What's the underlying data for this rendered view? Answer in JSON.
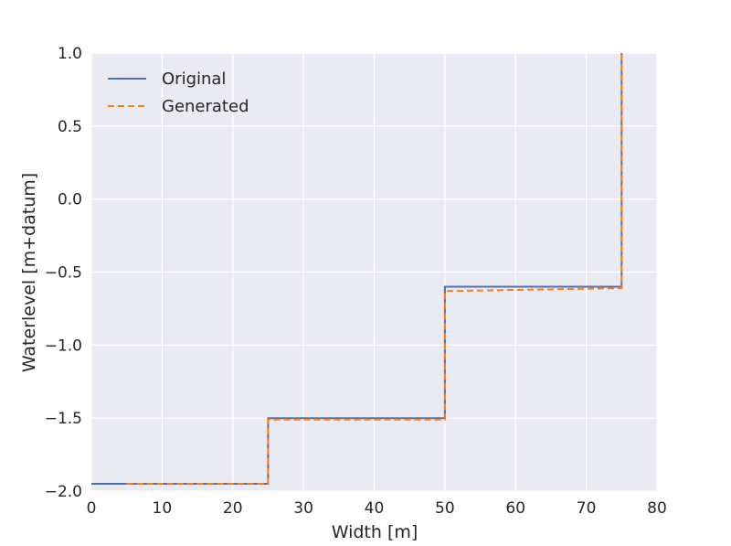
{
  "chart_data": {
    "type": "line",
    "title": "",
    "xlabel": "Width [m]",
    "ylabel": "Waterlevel [m+datum]",
    "xlim": [
      0,
      80
    ],
    "ylim": [
      -2.0,
      1.0
    ],
    "xticks": [
      "0",
      "10",
      "20",
      "30",
      "40",
      "50",
      "60",
      "70",
      "80"
    ],
    "yticks": [
      "1.0",
      "0.5",
      "0.0",
      "−0.5",
      "−1.0",
      "−1.5",
      "−2.0"
    ],
    "grid": true,
    "legend_position": "upper-left",
    "background_color": "#eaeaf2",
    "series": [
      {
        "name": "Original",
        "color": "#4c72b0",
        "style": "solid",
        "x": [
          0,
          25,
          25,
          50,
          50,
          75,
          75
        ],
        "y": [
          -1.95,
          -1.95,
          -1.5,
          -1.5,
          -0.6,
          -0.6,
          1.0
        ]
      },
      {
        "name": "Generated",
        "color": "#ff7f0e",
        "style": "dashed",
        "x": [
          5,
          25,
          25,
          50,
          50,
          75,
          75
        ],
        "y": [
          -1.95,
          -1.95,
          -1.51,
          -1.51,
          -0.63,
          -0.61,
          1.0
        ]
      }
    ]
  }
}
